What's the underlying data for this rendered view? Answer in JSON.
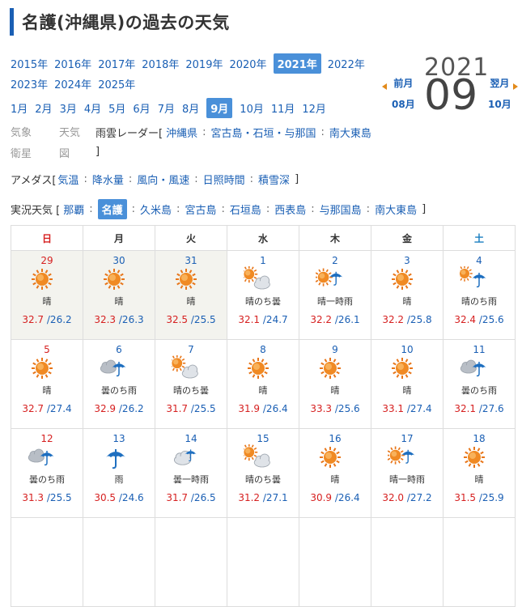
{
  "page": {
    "title": "名護(沖縄県)の過去の天気"
  },
  "years": {
    "row1": [
      "2015年",
      "2016年",
      "2017年",
      "2018年",
      "2019年",
      "2020年",
      "2021年",
      "2022年"
    ],
    "row2": [
      "2023年",
      "2024年",
      "2025年"
    ],
    "selected": "2021年"
  },
  "months": {
    "items": [
      "1月",
      "2月",
      "3月",
      "4月",
      "5月",
      "6月",
      "7月",
      "8月",
      "9月",
      "10月",
      "11月",
      "12月"
    ],
    "selected": "9月"
  },
  "nav": {
    "prev_label": "前月",
    "prev_month": "08月",
    "next_label": "翌月",
    "next_month": "10月",
    "current_year": "2021",
    "current_month": "09"
  },
  "links": {
    "kishou_eisei": "気象衛星",
    "tenki_zu": "天気図",
    "rain_radar_label": "雨雲レーダー[",
    "rain_radar_items": [
      "沖縄県",
      "宮古島・石垣・与那国",
      "南大東島"
    ],
    "close_bracket": "]",
    "amedas_label": "アメダス[",
    "amedas_items": [
      "気温",
      "降水量",
      "風向・風速",
      "日照時間",
      "積雪深"
    ],
    "current_label": "実況天気 [",
    "current_items": [
      "那覇",
      "名護",
      "久米島",
      "宮古島",
      "石垣島",
      "西表島",
      "与那国島",
      "南大東島"
    ],
    "current_selected": "名護"
  },
  "calendar": {
    "weekdays": [
      "日",
      "月",
      "火",
      "水",
      "木",
      "金",
      "土"
    ],
    "weeks": [
      [
        {
          "day": "29",
          "weather": "晴",
          "icon": "sun-icon",
          "hi": "32.7",
          "lo": "/26.2",
          "prev": true
        },
        {
          "day": "30",
          "weather": "晴",
          "icon": "sun-icon",
          "hi": "32.3",
          "lo": "/26.3",
          "prev": true
        },
        {
          "day": "31",
          "weather": "晴",
          "icon": "sun-icon",
          "hi": "32.5",
          "lo": "/25.5",
          "prev": true
        },
        {
          "day": "1",
          "weather": "晴のち曇",
          "icon": "sun-then-cloud-icon",
          "hi": "32.1",
          "lo": "/24.7"
        },
        {
          "day": "2",
          "weather": "晴一時雨",
          "icon": "sun-occasional-rain-icon",
          "hi": "32.2",
          "lo": "/26.1"
        },
        {
          "day": "3",
          "weather": "晴",
          "icon": "sun-icon",
          "hi": "32.2",
          "lo": "/25.8"
        },
        {
          "day": "4",
          "weather": "晴のち雨",
          "icon": "sun-then-rain-icon",
          "hi": "32.4",
          "lo": "/25.6"
        }
      ],
      [
        {
          "day": "5",
          "weather": "晴",
          "icon": "sun-icon",
          "hi": "32.7",
          "lo": "/27.4"
        },
        {
          "day": "6",
          "weather": "曇のち雨",
          "icon": "cloud-then-rain-icon",
          "hi": "32.9",
          "lo": "/26.2"
        },
        {
          "day": "7",
          "weather": "晴のち曇",
          "icon": "sun-then-cloud-icon",
          "hi": "31.7",
          "lo": "/25.5"
        },
        {
          "day": "8",
          "weather": "晴",
          "icon": "sun-icon",
          "hi": "31.9",
          "lo": "/26.4"
        },
        {
          "day": "9",
          "weather": "晴",
          "icon": "sun-icon",
          "hi": "33.3",
          "lo": "/25.6"
        },
        {
          "day": "10",
          "weather": "晴",
          "icon": "sun-icon",
          "hi": "33.1",
          "lo": "/27.4"
        },
        {
          "day": "11",
          "weather": "曇のち雨",
          "icon": "cloud-then-rain-icon",
          "hi": "32.1",
          "lo": "/27.6"
        }
      ],
      [
        {
          "day": "12",
          "weather": "曇のち雨",
          "icon": "cloud-then-rain-icon",
          "hi": "31.3",
          "lo": "/25.5"
        },
        {
          "day": "13",
          "weather": "雨",
          "icon": "rain-icon",
          "hi": "30.5",
          "lo": "/24.6"
        },
        {
          "day": "14",
          "weather": "曇一時雨",
          "icon": "cloud-occasional-rain-icon",
          "hi": "31.7",
          "lo": "/26.5"
        },
        {
          "day": "15",
          "weather": "晴のち曇",
          "icon": "sun-then-cloud-icon",
          "hi": "31.2",
          "lo": "/27.1"
        },
        {
          "day": "16",
          "weather": "晴",
          "icon": "sun-icon",
          "hi": "30.9",
          "lo": "/26.4"
        },
        {
          "day": "17",
          "weather": "晴一時雨",
          "icon": "sun-occasional-rain-icon",
          "hi": "32.0",
          "lo": "/27.2"
        },
        {
          "day": "18",
          "weather": "晴",
          "icon": "sun-icon",
          "hi": "31.5",
          "lo": "/25.9"
        }
      ]
    ]
  }
}
